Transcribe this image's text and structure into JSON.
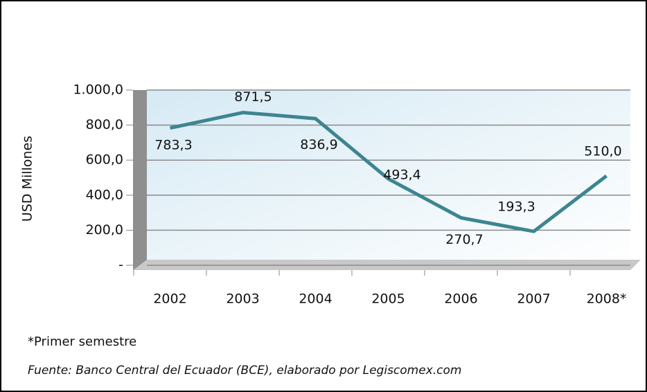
{
  "chart_data": {
    "type": "line",
    "y_label": "USD Millones",
    "categories": [
      "2002",
      "2003",
      "2004",
      "2005",
      "2006",
      "2007",
      "2008*"
    ],
    "series": [
      {
        "name": "USD Millones",
        "color": "#3d8590",
        "values": [
          783.3,
          871.5,
          836.9,
          493.4,
          270.7,
          193.3,
          510.0
        ],
        "value_labels": [
          "783,3",
          "871,5",
          "836,9",
          "493,4",
          "270,7",
          "193,3",
          "510,0"
        ]
      }
    ],
    "ylim": [
      0,
      1000
    ],
    "yticks": [
      {
        "value": 0,
        "label": "-"
      },
      {
        "value": 200,
        "label": "200,0"
      },
      {
        "value": 400,
        "label": "400,0"
      },
      {
        "value": 600,
        "label": "600,0"
      },
      {
        "value": 800,
        "label": "800,0"
      },
      {
        "value": 1000,
        "label": "1.000,0"
      }
    ],
    "grid": true,
    "notes": [
      "*Primer semestre",
      "Fuente:  Banco Central del Ecuador (BCE), elaborado por Legiscomex.com"
    ]
  }
}
